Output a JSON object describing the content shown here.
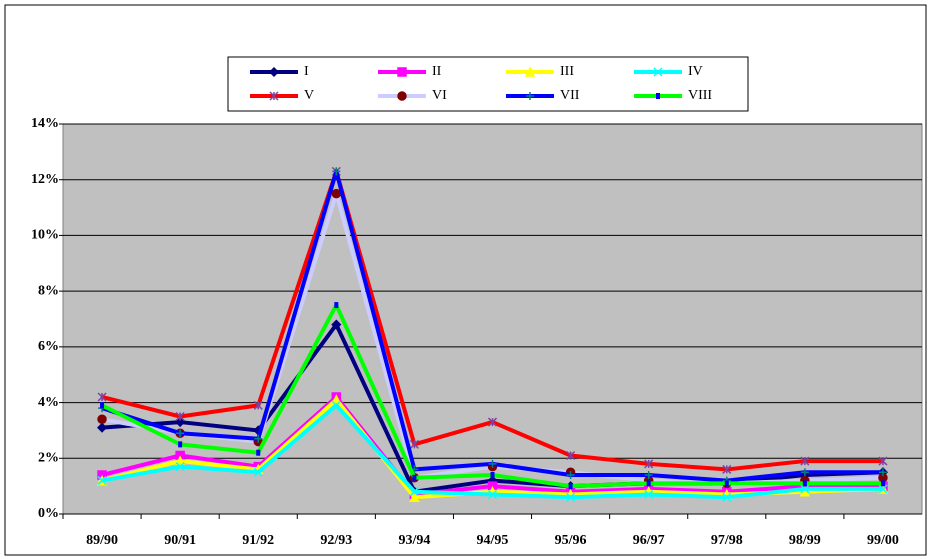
{
  "chart_data": {
    "type": "line",
    "categories": [
      "89/90",
      "90/91",
      "91/92",
      "92/93",
      "93/94",
      "94/95",
      "95/96",
      "96/97",
      "97/98",
      "98/99",
      "99/00"
    ],
    "series": [
      {
        "name": "I",
        "color": "#000080",
        "marker": "diamond",
        "values": [
          3.1,
          3.3,
          3.0,
          6.8,
          0.8,
          1.2,
          1.0,
          1.1,
          1.1,
          1.4,
          1.5
        ]
      },
      {
        "name": "II",
        "color": "#ff00ff",
        "marker": "square",
        "values": [
          1.4,
          2.1,
          1.7,
          4.2,
          0.7,
          1.0,
          0.8,
          0.9,
          0.8,
          1.0,
          1.0
        ]
      },
      {
        "name": "III",
        "color": "#ffff00",
        "marker": "triangle",
        "values": [
          1.2,
          1.9,
          1.6,
          4.1,
          0.6,
          0.8,
          0.7,
          0.8,
          0.7,
          0.8,
          0.9
        ]
      },
      {
        "name": "IV",
        "color": "#00ffff",
        "marker": "x",
        "values": [
          1.2,
          1.7,
          1.5,
          3.9,
          0.8,
          0.7,
          0.6,
          0.7,
          0.6,
          0.9,
          0.9
        ]
      },
      {
        "name": "V",
        "color": "#ff0000",
        "marker": "star",
        "values": [
          4.2,
          3.5,
          3.9,
          12.3,
          2.5,
          3.3,
          2.1,
          1.8,
          1.6,
          1.9,
          1.9
        ]
      },
      {
        "name": "VI",
        "color": "#ccccff",
        "marker": "circle",
        "values": [
          3.4,
          2.9,
          2.6,
          11.5,
          1.3,
          1.7,
          1.5,
          1.2,
          1.1,
          1.2,
          1.3
        ]
      },
      {
        "name": "VII",
        "color": "#0000ff",
        "marker": "plus",
        "values": [
          3.8,
          2.9,
          2.7,
          12.3,
          1.6,
          1.8,
          1.4,
          1.4,
          1.2,
          1.5,
          1.5
        ]
      },
      {
        "name": "VIII",
        "color": "#00ff00",
        "marker": "bar",
        "values": [
          3.9,
          2.5,
          2.2,
          7.5,
          1.3,
          1.4,
          1.0,
          1.1,
          1.1,
          1.1,
          1.1
        ]
      }
    ],
    "ylim": [
      0,
      14
    ],
    "yticks": [
      {
        "value": 0,
        "label": "0%"
      },
      {
        "value": 2,
        "label": "2%"
      },
      {
        "value": 4,
        "label": "4%"
      },
      {
        "value": 6,
        "label": "6%"
      },
      {
        "value": 8,
        "label": "8%"
      },
      {
        "value": 10,
        "label": "10%"
      },
      {
        "value": 12,
        "label": "12%"
      },
      {
        "value": 14,
        "label": "14%"
      }
    ],
    "grid": true,
    "legend": "top"
  }
}
